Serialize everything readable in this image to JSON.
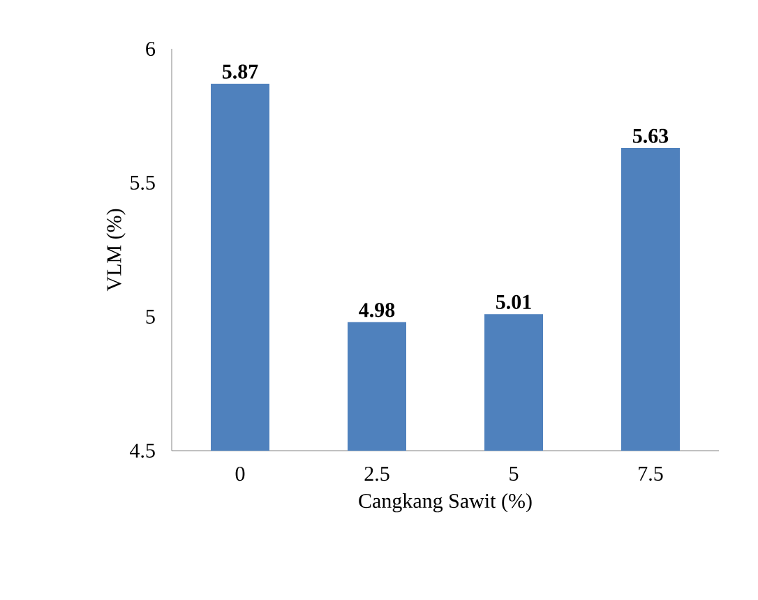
{
  "chart_data": {
    "type": "bar",
    "xlabel": "Cangkang Sawit (%)",
    "ylabel": "VLM (%)",
    "categories": [
      "0",
      "2.5",
      "5",
      "7.5"
    ],
    "values": [
      5.87,
      4.98,
      5.01,
      5.63
    ],
    "color": "#4f81bd",
    "ylim": [
      4.5,
      6
    ],
    "yticks": [
      4.5,
      5,
      5.5,
      6
    ],
    "grid": false,
    "data_labels": true
  }
}
